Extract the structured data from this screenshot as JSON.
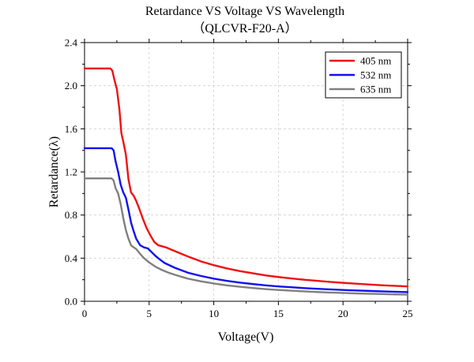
{
  "chart_data": {
    "type": "line",
    "title": "Retardance VS Voltage VS Wavelength",
    "subtitle": "（QLCVR-F20-A）",
    "xlabel": "Voltage(V)",
    "ylabel": "Retardance(λ)",
    "xlim": [
      0,
      25
    ],
    "ylim": [
      0,
      2.4
    ],
    "xticks": [
      0,
      5,
      10,
      15,
      20,
      25
    ],
    "yticks": [
      0.0,
      0.4,
      0.8,
      1.2,
      1.6,
      2.0,
      2.4
    ],
    "xtick_labels": [
      "0",
      "5",
      "10",
      "15",
      "20",
      "25"
    ],
    "ytick_labels": [
      "0.0",
      "0.4",
      "0.8",
      "1.2",
      "1.6",
      "2.0",
      "2.4"
    ],
    "grid": true,
    "legend_position": "top-right",
    "series": [
      {
        "name": "405 nm",
        "color": "#ee1111",
        "x": [
          0,
          2.0,
          2.15,
          2.3,
          2.5,
          2.7,
          2.85,
          3.0,
          3.2,
          3.4,
          3.6,
          3.8,
          4.0,
          4.2,
          4.5,
          4.8,
          5.1,
          5.4,
          5.7,
          6.0,
          6.3,
          6.8,
          7.5,
          8.0,
          9.0,
          10.0,
          11.0,
          12.0,
          13.0,
          14.0,
          15.0,
          16.0,
          17.0,
          18.0,
          19.0,
          20.0,
          21.0,
          22.0,
          23.0,
          24.0,
          25.0
        ],
        "y": [
          2.16,
          2.16,
          2.14,
          2.06,
          1.97,
          1.78,
          1.56,
          1.48,
          1.36,
          1.13,
          1.01,
          0.98,
          0.93,
          0.87,
          0.77,
          0.68,
          0.61,
          0.55,
          0.52,
          0.51,
          0.5,
          0.475,
          0.44,
          0.415,
          0.37,
          0.335,
          0.305,
          0.28,
          0.26,
          0.24,
          0.225,
          0.212,
          0.2,
          0.19,
          0.18,
          0.171,
          0.163,
          0.156,
          0.149,
          0.143,
          0.138
        ]
      },
      {
        "name": "532 nm",
        "color": "#1111ee",
        "x": [
          0,
          2.1,
          2.25,
          2.4,
          2.6,
          2.8,
          3.0,
          3.2,
          3.4,
          3.6,
          3.8,
          4.0,
          4.3,
          4.6,
          4.9,
          5.2,
          5.5,
          5.8,
          6.2,
          7.0,
          8.0,
          9.0,
          10.0,
          11.0,
          12.0,
          13.0,
          14.0,
          15.0,
          16.0,
          17.0,
          18.0,
          19.0,
          20.0,
          21.0,
          22.0,
          23.0,
          24.0,
          25.0
        ],
        "y": [
          1.42,
          1.42,
          1.4,
          1.3,
          1.2,
          1.08,
          1.01,
          0.96,
          0.85,
          0.73,
          0.65,
          0.58,
          0.52,
          0.5,
          0.49,
          0.455,
          0.42,
          0.39,
          0.355,
          0.31,
          0.265,
          0.235,
          0.21,
          0.19,
          0.173,
          0.16,
          0.148,
          0.138,
          0.13,
          0.122,
          0.116,
          0.11,
          0.105,
          0.1,
          0.096,
          0.092,
          0.088,
          0.085
        ]
      },
      {
        "name": "635 nm",
        "color": "#808080",
        "x": [
          0,
          2.1,
          2.25,
          2.4,
          2.6,
          2.8,
          3.0,
          3.2,
          3.4,
          3.6,
          3.8,
          4.0,
          4.3,
          4.6,
          5.0,
          5.5,
          6.0,
          6.5,
          7.0,
          8.0,
          9.0,
          10.0,
          11.0,
          12.0,
          13.0,
          14.0,
          15.0,
          16.0,
          17.0,
          18.0,
          19.0,
          20.0,
          21.0,
          22.0,
          23.0,
          24.0,
          25.0
        ],
        "y": [
          1.14,
          1.14,
          1.12,
          1.05,
          1.0,
          0.9,
          0.77,
          0.66,
          0.58,
          0.52,
          0.5,
          0.485,
          0.44,
          0.4,
          0.36,
          0.32,
          0.29,
          0.265,
          0.245,
          0.21,
          0.185,
          0.165,
          0.148,
          0.135,
          0.123,
          0.113,
          0.105,
          0.098,
          0.092,
          0.086,
          0.081,
          0.077,
          0.073,
          0.07,
          0.067,
          0.064,
          0.062
        ]
      }
    ]
  }
}
